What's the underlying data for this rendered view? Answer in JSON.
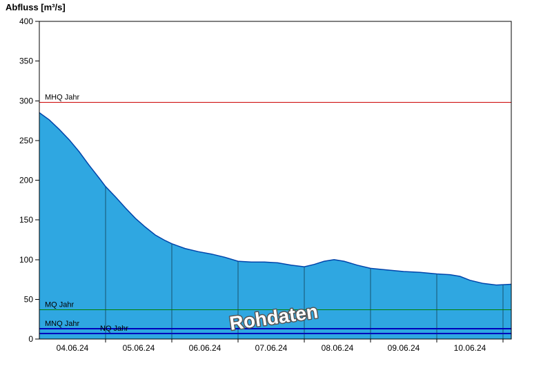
{
  "title": "Abfluss [m³/s]",
  "watermark": "Rohdaten",
  "chart_data": {
    "type": "area",
    "title": "",
    "ylabel": "Abfluss [m³/s]",
    "xlabel": "",
    "x_unit": "days since 04.06.24 00:00",
    "xlim": [
      0,
      7.125
    ],
    "ylim": [
      0,
      400
    ],
    "grid": "vertical daily gridlines, visible only inside filled area",
    "legend": "none",
    "series": [
      {
        "name": "Abfluss Rohdaten",
        "x_days": [
          0,
          0.15,
          0.3,
          0.45,
          0.6,
          0.75,
          0.9,
          1,
          1.15,
          1.3,
          1.45,
          1.6,
          1.75,
          1.9,
          2,
          2.2,
          2.4,
          2.6,
          2.8,
          3,
          3.2,
          3.4,
          3.6,
          3.8,
          4,
          4.15,
          4.3,
          4.45,
          4.6,
          4.8,
          5,
          5.25,
          5.5,
          5.75,
          6,
          6.2,
          6.35,
          6.5,
          6.7,
          6.9,
          7.125
        ],
        "values": [
          285,
          276,
          264,
          251,
          236,
          219,
          203,
          192,
          179,
          165,
          152,
          141,
          131,
          124,
          120,
          114,
          110,
          107,
          103,
          98,
          97,
          97,
          96,
          93,
          91,
          94,
          98,
          100,
          98,
          93,
          89,
          87,
          85,
          84,
          82,
          81,
          79,
          74,
          70,
          68,
          69
        ]
      }
    ],
    "x_tick_labels": [
      "04.06.24",
      "05.06.24",
      "06.06.24",
      "07.06.24",
      "08.06.24",
      "09.06.24",
      "10.06.24"
    ],
    "x_gridlines_days": [
      1,
      2,
      3,
      4,
      5,
      6,
      7
    ],
    "y_ticks": [
      0,
      50,
      100,
      150,
      200,
      250,
      300,
      350,
      400
    ],
    "y_tick_labels": [
      "0",
      "50",
      "100",
      "150",
      "200",
      "250",
      "300",
      "350",
      "400"
    ],
    "reference_lines": [
      {
        "label": "MHQ Jahr",
        "value": 298,
        "color": "#cc0000",
        "width": 1,
        "label_offset_x": 8
      },
      {
        "label": "MQ Jahr",
        "value": 37,
        "color": "#008000",
        "width": 1,
        "label_offset_x": 8
      },
      {
        "label": "MNQ Jahr",
        "value": 13,
        "color": "#0000bb",
        "width": 2,
        "label_offset_x": 8
      },
      {
        "label": "NQ Jahr",
        "value": 7,
        "color": "#0000bb",
        "width": 2,
        "label_offset_x": 88
      }
    ],
    "colors": {
      "area_fill": "#2fa7e1",
      "area_line": "#0044aa",
      "grid": "#000000",
      "axis": "#000000",
      "background": "#ffffff",
      "watermark_fill": "#ffffff",
      "watermark_outline": "#555555"
    }
  }
}
